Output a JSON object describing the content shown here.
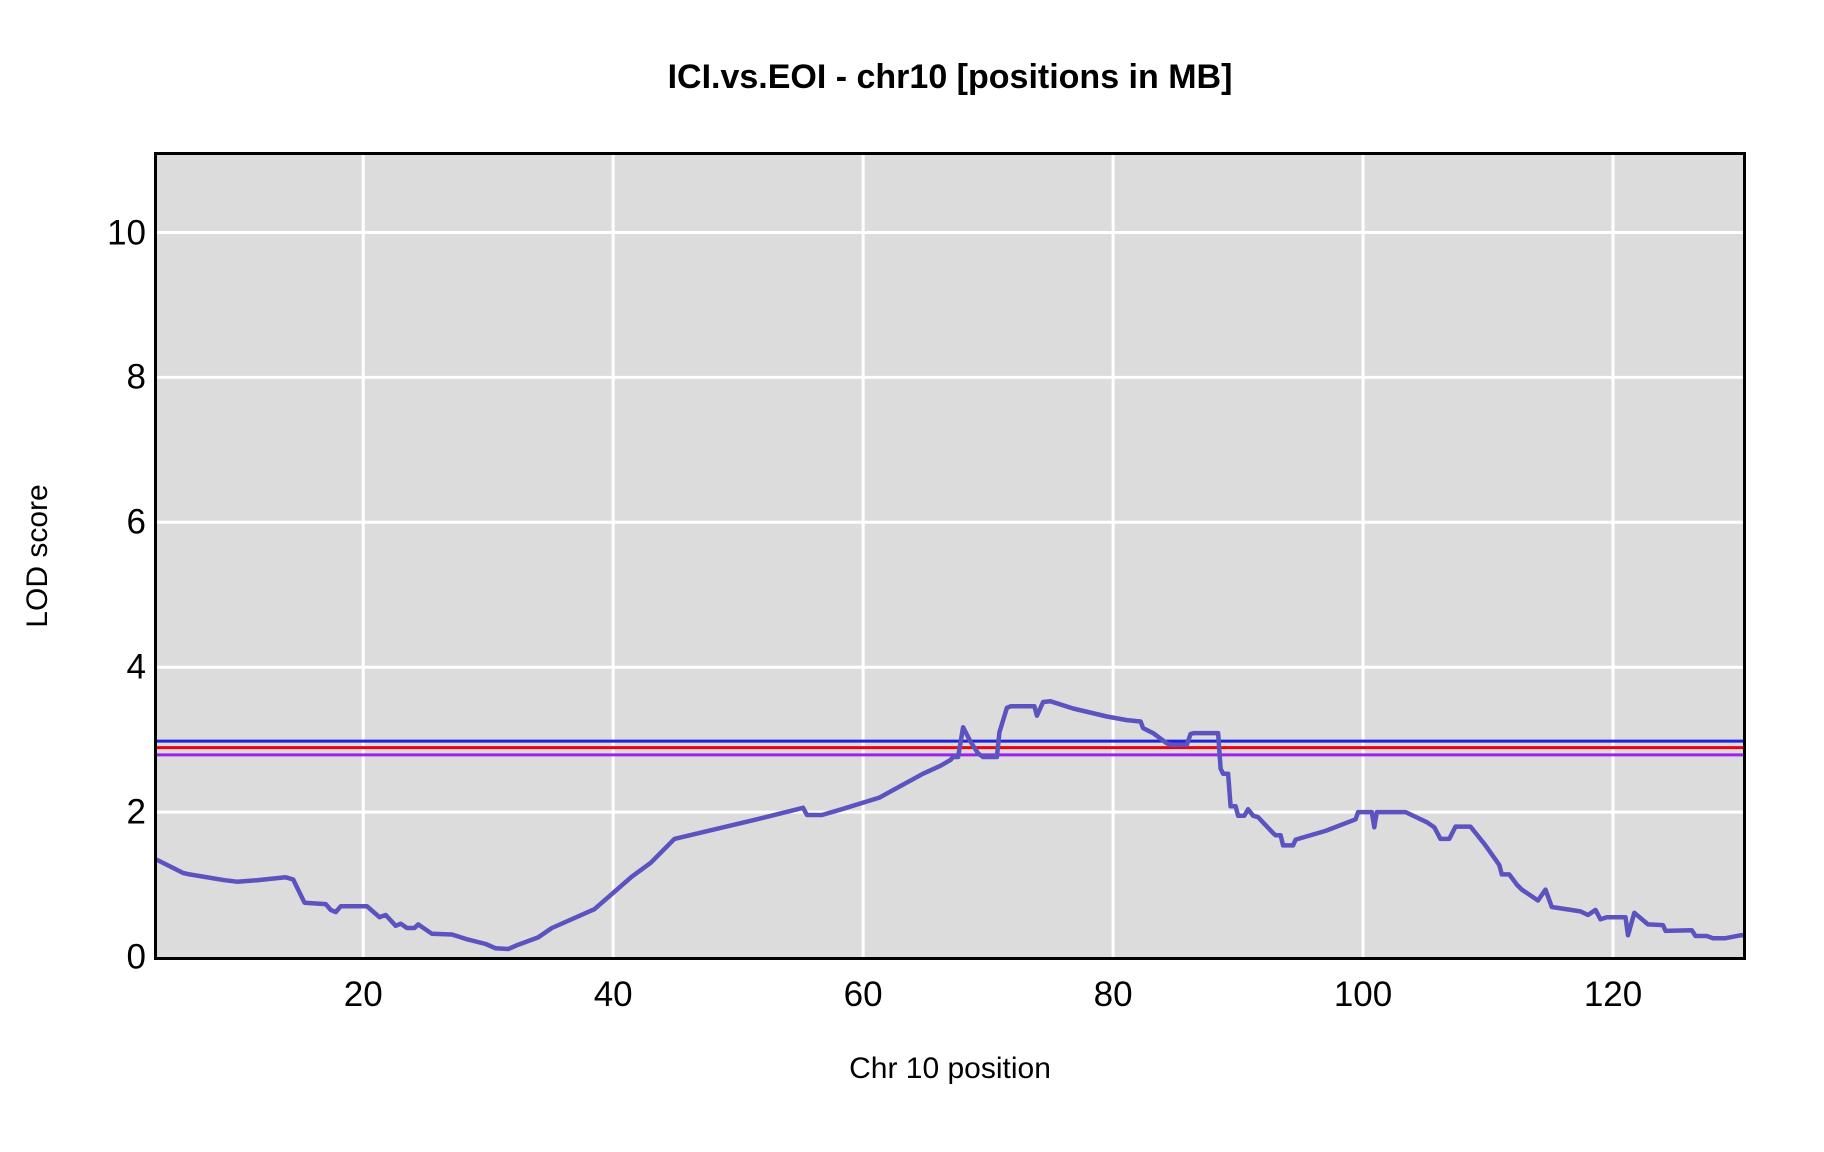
{
  "title": "ICI.vs.EOI - chr10 [positions in MB]",
  "colors": {
    "background": "#FFFFFF",
    "panel_bg": "#DCDCDC",
    "gridline": "#FFFFFF",
    "border": "#000000",
    "curve": "#5B53C0",
    "text": "#000000"
  },
  "chart_data": {
    "type": "line",
    "title": "ICI.vs.EOI - chr10 [positions in MB]",
    "xlabel": "Chr 10 position",
    "ylabel": "LOD score",
    "grid": true,
    "legend": "none",
    "xlim": [
      3.5,
      130.4
    ],
    "ylim": [
      0,
      11.07
    ],
    "x_ticks": [
      20,
      40,
      60,
      80,
      100,
      120
    ],
    "y_ticks": [
      0,
      2,
      4,
      6,
      8,
      10
    ],
    "thresholds": [
      {
        "name": "blue-threshold",
        "value": 2.98,
        "color": "#2222DD"
      },
      {
        "name": "red-threshold",
        "value": 2.89,
        "color": "#EE0011"
      },
      {
        "name": "purple-threshold",
        "value": 2.79,
        "color": "#A020F0"
      }
    ],
    "series": [
      {
        "name": "LOD curve",
        "color": "#5B53C0",
        "points": [
          [
            3.5,
            1.34
          ],
          [
            5.6,
            1.16
          ],
          [
            6.1,
            1.14
          ],
          [
            8.9,
            1.06
          ],
          [
            9.9,
            1.04
          ],
          [
            11.5,
            1.06
          ],
          [
            13.8,
            1.1
          ],
          [
            14.4,
            1.07
          ],
          [
            15.3,
            0.75
          ],
          [
            17.0,
            0.73
          ],
          [
            17.4,
            0.65
          ],
          [
            17.8,
            0.62
          ],
          [
            18.2,
            0.7
          ],
          [
            20.3,
            0.7
          ],
          [
            21.3,
            0.55
          ],
          [
            21.8,
            0.58
          ],
          [
            22.6,
            0.43
          ],
          [
            23.0,
            0.46
          ],
          [
            23.5,
            0.4
          ],
          [
            24.1,
            0.4
          ],
          [
            24.4,
            0.45
          ],
          [
            24.9,
            0.39
          ],
          [
            25.5,
            0.32
          ],
          [
            27.1,
            0.31
          ],
          [
            28.2,
            0.25
          ],
          [
            29.8,
            0.18
          ],
          [
            30.6,
            0.12
          ],
          [
            31.6,
            0.11
          ],
          [
            32.4,
            0.17
          ],
          [
            34.0,
            0.27
          ],
          [
            35.1,
            0.4
          ],
          [
            38.5,
            0.66
          ],
          [
            41.5,
            1.11
          ],
          [
            43.0,
            1.3
          ],
          [
            44.9,
            1.63
          ],
          [
            48.3,
            1.77
          ],
          [
            51.5,
            1.9
          ],
          [
            55.2,
            2.06
          ],
          [
            55.5,
            1.96
          ],
          [
            56.7,
            1.96
          ],
          [
            58.3,
            2.04
          ],
          [
            61.3,
            2.2
          ],
          [
            64.8,
            2.53
          ],
          [
            66.2,
            2.64
          ],
          [
            67.0,
            2.72
          ],
          [
            67.2,
            2.76
          ],
          [
            67.6,
            2.76
          ],
          [
            68.0,
            3.17
          ],
          [
            68.6,
            2.97
          ],
          [
            69.2,
            2.81
          ],
          [
            69.6,
            2.76
          ],
          [
            70.7,
            2.76
          ],
          [
            70.9,
            3.1
          ],
          [
            71.5,
            3.44
          ],
          [
            71.8,
            3.46
          ],
          [
            73.7,
            3.46
          ],
          [
            73.9,
            3.33
          ],
          [
            74.4,
            3.52
          ],
          [
            75.0,
            3.53
          ],
          [
            76.8,
            3.43
          ],
          [
            79.5,
            3.32
          ],
          [
            81.1,
            3.27
          ],
          [
            82.2,
            3.25
          ],
          [
            82.4,
            3.16
          ],
          [
            83.2,
            3.09
          ],
          [
            84.3,
            2.95
          ],
          [
            84.6,
            2.93
          ],
          [
            85.9,
            2.93
          ],
          [
            86.2,
            3.08
          ],
          [
            86.5,
            3.09
          ],
          [
            88.4,
            3.09
          ],
          [
            88.6,
            2.6
          ],
          [
            88.8,
            2.53
          ],
          [
            89.2,
            2.53
          ],
          [
            89.4,
            2.08
          ],
          [
            89.8,
            2.08
          ],
          [
            90.0,
            1.95
          ],
          [
            90.5,
            1.95
          ],
          [
            90.8,
            2.04
          ],
          [
            91.2,
            1.95
          ],
          [
            91.6,
            1.93
          ],
          [
            92.8,
            1.71
          ],
          [
            93.0,
            1.68
          ],
          [
            93.4,
            1.68
          ],
          [
            93.6,
            1.54
          ],
          [
            94.4,
            1.54
          ],
          [
            94.6,
            1.62
          ],
          [
            97.0,
            1.74
          ],
          [
            99.4,
            1.9
          ],
          [
            99.6,
            2.0
          ],
          [
            100.7,
            2.0
          ],
          [
            100.9,
            1.79
          ],
          [
            101.1,
            2.0
          ],
          [
            103.4,
            2.0
          ],
          [
            105.1,
            1.86
          ],
          [
            105.7,
            1.79
          ],
          [
            106.2,
            1.63
          ],
          [
            106.9,
            1.63
          ],
          [
            107.4,
            1.8
          ],
          [
            108.6,
            1.8
          ],
          [
            109.8,
            1.54
          ],
          [
            110.7,
            1.32
          ],
          [
            110.9,
            1.27
          ],
          [
            111.1,
            1.14
          ],
          [
            111.7,
            1.14
          ],
          [
            112.3,
            1.0
          ],
          [
            112.7,
            0.93
          ],
          [
            114.0,
            0.78
          ],
          [
            114.6,
            0.93
          ],
          [
            115.1,
            0.69
          ],
          [
            117.4,
            0.63
          ],
          [
            118.0,
            0.58
          ],
          [
            118.6,
            0.65
          ],
          [
            119.0,
            0.52
          ],
          [
            119.5,
            0.55
          ],
          [
            121.0,
            0.55
          ],
          [
            121.2,
            0.3
          ],
          [
            121.7,
            0.61
          ],
          [
            122.8,
            0.45
          ],
          [
            124.0,
            0.44
          ],
          [
            124.2,
            0.36
          ],
          [
            126.3,
            0.37
          ],
          [
            126.6,
            0.29
          ],
          [
            127.5,
            0.29
          ],
          [
            128.0,
            0.26
          ],
          [
            129.0,
            0.26
          ],
          [
            130.2,
            0.3
          ],
          [
            130.4,
            0.3
          ]
        ]
      }
    ]
  }
}
